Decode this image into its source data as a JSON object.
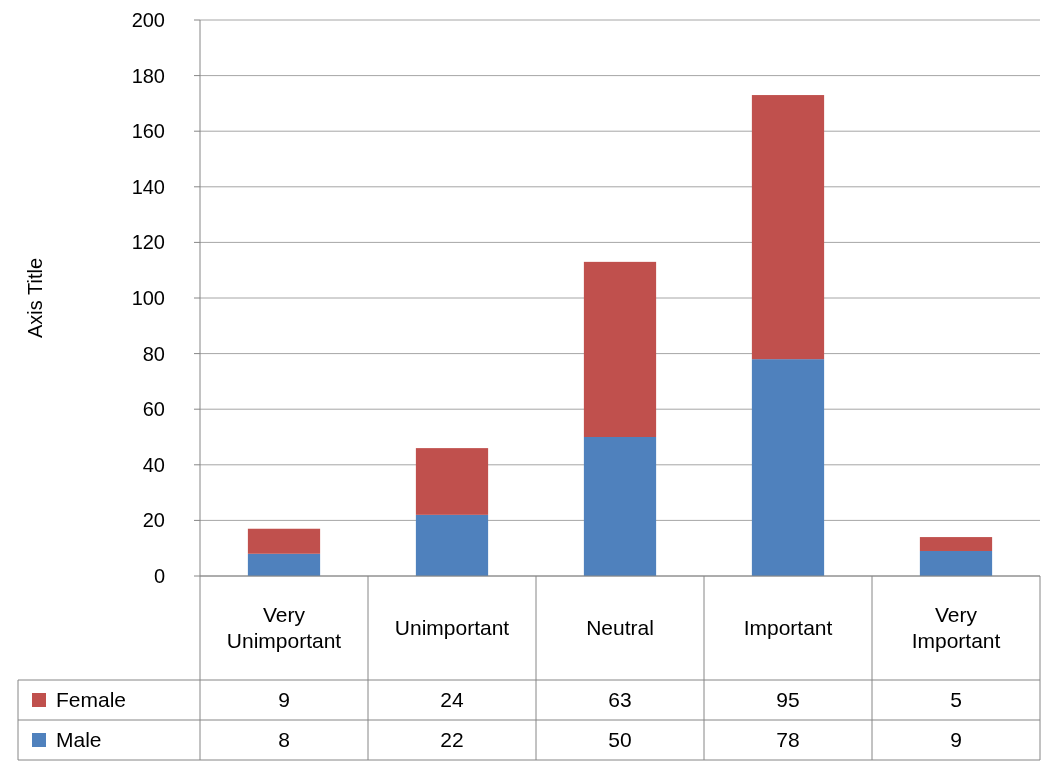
{
  "chart_data": {
    "type": "bar",
    "stacked": true,
    "ylabel": "Axis Title",
    "categories": [
      "Very Unimportant",
      "Unimportant",
      "Neutral",
      "Important",
      "Very Important"
    ],
    "series": [
      {
        "name": "Male",
        "color": "#4f81bd",
        "values": [
          8,
          22,
          50,
          78,
          9
        ]
      },
      {
        "name": "Female",
        "color": "#c0504d",
        "values": [
          9,
          24,
          63,
          95,
          5
        ]
      }
    ],
    "ylim": [
      0,
      200
    ],
    "yticks": [
      0,
      20,
      40,
      60,
      80,
      100,
      120,
      140,
      160,
      180,
      200
    ],
    "grid": "y",
    "data_labels": true,
    "legend": "bottom"
  }
}
